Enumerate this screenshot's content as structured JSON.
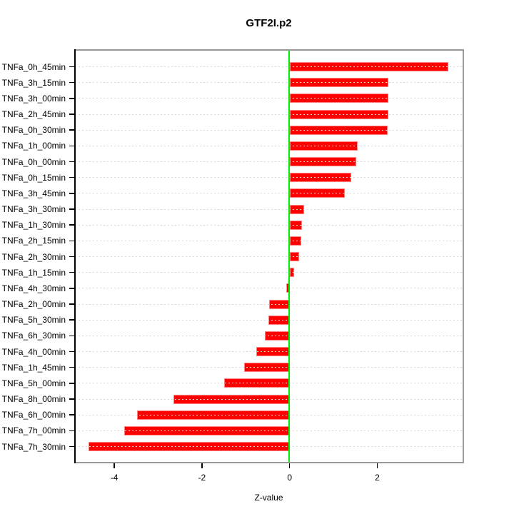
{
  "chart_data": {
    "type": "bar",
    "orientation": "horizontal",
    "title": "GTF2I.p2",
    "xlabel": "Z-value",
    "ylabel": "",
    "legend": "none",
    "grid": "horizontal-dotted",
    "zero_line": true,
    "xlim": [
      -4.9,
      3.95
    ],
    "xticks": [
      -4,
      -2,
      0,
      2
    ],
    "xtick_labels": [
      "-4",
      "-2",
      "0",
      "2"
    ],
    "categories": [
      "TNFa_0h_45min",
      "TNFa_3h_15min",
      "TNFa_3h_00min",
      "TNFa_2h_45min",
      "TNFa_0h_30min",
      "TNFa_1h_00min",
      "TNFa_0h_00min",
      "TNFa_0h_15min",
      "TNFa_3h_45min",
      "TNFa_3h_30min",
      "TNFa_1h_30min",
      "TNFa_2h_15min",
      "TNFa_2h_30min",
      "TNFa_1h_15min",
      "TNFa_4h_30min",
      "TNFa_2h_00min",
      "TNFa_5h_30min",
      "TNFa_6h_30min",
      "TNFa_4h_00min",
      "TNFa_1h_45min",
      "TNFa_5h_00min",
      "TNFa_8h_00min",
      "TNFa_6h_00min",
      "TNFa_7h_00min",
      "TNFa_7h_30min"
    ],
    "values": [
      3.62,
      2.26,
      2.25,
      2.25,
      2.24,
      1.56,
      1.52,
      1.4,
      1.26,
      0.33,
      0.28,
      0.27,
      0.22,
      0.1,
      -0.08,
      -0.47,
      -0.49,
      -0.57,
      -0.76,
      -1.03,
      -1.5,
      -2.65,
      -3.48,
      -3.77,
      -4.58
    ],
    "colors": {
      "bar_fill": "#FF0000",
      "bar_border": "#FF8080",
      "zero_line": "#00EE00",
      "gridline": "#D8D8D8",
      "box_border": "#999999",
      "axis_line": "#000000",
      "text": "#000000",
      "background": "#FFFFFF"
    }
  }
}
